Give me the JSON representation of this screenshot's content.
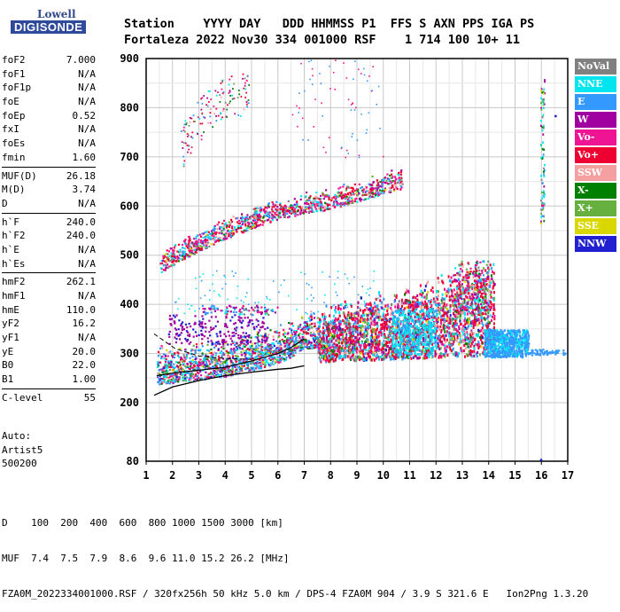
{
  "logo": {
    "brand_top": "Lowell",
    "brand_bottom": "DIGISONDE"
  },
  "header": {
    "line1": "Station    YYYY DAY   DDD HHMMSS P1  FFS S AXN PPS IGA PS",
    "line2": "Fortaleza 2022 Nov30 334 001000 RSF    1 714 100 10+ 11"
  },
  "params": {
    "group1": [
      {
        "label": "foF2",
        "value": "7.000"
      },
      {
        "label": "foF1",
        "value": "N/A"
      },
      {
        "label": "foF1p",
        "value": "N/A"
      },
      {
        "label": "foE",
        "value": "N/A"
      },
      {
        "label": "foEp",
        "value": "0.52"
      },
      {
        "label": "fxI",
        "value": "N/A"
      },
      {
        "label": "foEs",
        "value": "N/A"
      },
      {
        "label": "fmin",
        "value": "1.60"
      }
    ],
    "group2": [
      {
        "label": "MUF(D)",
        "value": "26.18"
      },
      {
        "label": "M(D)",
        "value": "3.74"
      },
      {
        "label": "D",
        "value": "N/A"
      }
    ],
    "group3": [
      {
        "label": "h`F",
        "value": "240.0"
      },
      {
        "label": "h`F2",
        "value": "240.0"
      },
      {
        "label": "h`E",
        "value": "N/A"
      },
      {
        "label": "h`Es",
        "value": "N/A"
      }
    ],
    "group4": [
      {
        "label": "hmF2",
        "value": "262.1"
      },
      {
        "label": "hmF1",
        "value": "N/A"
      },
      {
        "label": "hmE",
        "value": "110.0"
      },
      {
        "label": "yF2",
        "value": "16.2"
      },
      {
        "label": "yF1",
        "value": "N/A"
      },
      {
        "label": "yE",
        "value": "20.0"
      },
      {
        "label": "B0",
        "value": "22.0"
      },
      {
        "label": "B1",
        "value": "1.00"
      }
    ],
    "group5": [
      {
        "label": "C-level",
        "value": "55"
      }
    ]
  },
  "auto": {
    "line1": "Auto:",
    "line2": "Artist5",
    "line3": "500200"
  },
  "legend": [
    {
      "label": "NoVal",
      "color": "#808080"
    },
    {
      "label": "NNE",
      "color": "#00e5ee"
    },
    {
      "label": "E",
      "color": "#3399ff"
    },
    {
      "label": "W",
      "color": "#a000a0"
    },
    {
      "label": "Vo-",
      "color": "#ee1493"
    },
    {
      "label": "Vo+",
      "color": "#ee0033"
    },
    {
      "label": "SSW",
      "color": "#f4a0a0"
    },
    {
      "label": "X-",
      "color": "#008000"
    },
    {
      "label": "X+",
      "color": "#66b040"
    },
    {
      "label": "SSE",
      "color": "#d8d800"
    },
    {
      "label": "NNW",
      "color": "#2020d0"
    }
  ],
  "footer": {
    "line1": "D    100  200  400  600  800 1000 1500 3000 [km]",
    "line2": "MUF  7.4  7.5  7.9  8.6  9.6 11.0 15.2 26.2 [MHz]",
    "line3": "FZA0M_2022334001000.RSF / 320fx256h 50 kHz 5.0 km / DPS-4 FZA0M 904 / 3.9 S 321.6 E   Ion2Png 1.3.20"
  },
  "chart_data": {
    "type": "scatter",
    "title": "",
    "xlabel": "",
    "ylabel": "",
    "xlim": [
      1,
      17
    ],
    "ylim": [
      80,
      900
    ],
    "xticks": [
      1,
      2,
      3,
      4,
      5,
      6,
      7,
      8,
      9,
      10,
      11,
      12,
      13,
      14,
      15,
      16,
      17
    ],
    "yticks": [
      80,
      200,
      300,
      400,
      500,
      600,
      700,
      800,
      900
    ],
    "grid": true,
    "traces": [
      {
        "name": "O-trace (F2, 1-hop)",
        "x": [
          1.4,
          2,
          3,
          4,
          5,
          6,
          6.5,
          7
        ],
        "y": [
          255,
          260,
          266,
          272,
          285,
          300,
          312,
          330
        ]
      },
      {
        "name": "Profile curve",
        "x": [
          1.3,
          2,
          3,
          4,
          5,
          6,
          6.5,
          7
        ],
        "y": [
          215,
          232,
          245,
          255,
          262,
          268,
          270,
          275
        ]
      },
      {
        "name": "F2 2-hop echo",
        "x": [
          1.5,
          2,
          3,
          4,
          5,
          6,
          7,
          8,
          9,
          10,
          10.5
        ],
        "y": [
          475,
          490,
          520,
          545,
          565,
          585,
          595,
          605,
          620,
          635,
          645
        ]
      },
      {
        "name": "F2 3-hop echo",
        "x": [
          2.4,
          3,
          4
        ],
        "y": [
          720,
          770,
          820
        ]
      }
    ],
    "clusters": [
      {
        "name": "echo cloud 2-7 MHz",
        "x": [
          1.5,
          7.5
        ],
        "y": [
          245,
          370
        ]
      },
      {
        "name": "spread F 8-14 MHz",
        "x": [
          7.5,
          14
        ],
        "y": [
          280,
          460
        ]
      },
      {
        "name": "spread F 12.5-15.5 MHz",
        "x": [
          12.5,
          15.5
        ],
        "y": [
          290,
          380
        ]
      }
    ]
  }
}
